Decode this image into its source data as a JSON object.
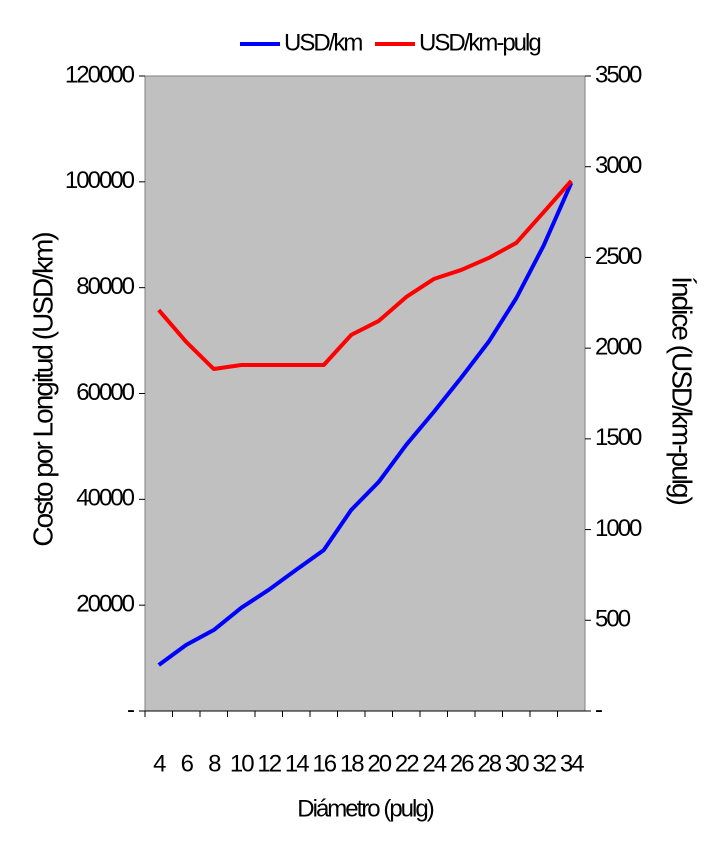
{
  "chart_data": {
    "type": "line",
    "y_label": "Costo por Longitud (USD/km)",
    "y2_label": "Índice (USD/km-pulg)",
    "x_label": "Diámetro (pulg)",
    "categories": [
      "4",
      "6",
      "8",
      "10",
      "12",
      "14",
      "16",
      "18",
      "20",
      "22",
      "24",
      "26",
      "28",
      "30",
      "32",
      "34"
    ],
    "series": [
      {
        "name": "USD/km",
        "color": "#0000ff",
        "values": [
          8700,
          12500,
          15300,
          19500,
          22900,
          26700,
          30400,
          38000,
          43300,
          50300,
          56500,
          63000,
          69800,
          78000,
          88000,
          99800
        ]
      },
      {
        "name": "USD/km-pulg",
        "color": "#ff0000",
        "axis": "y2",
        "values": [
          2210,
          2034,
          1885,
          1907,
          1907,
          1907,
          1907,
          2073,
          2150,
          2282,
          2381,
          2431,
          2497,
          2580,
          2750,
          2922
        ]
      }
    ],
    "ylim": [
      0,
      120000
    ],
    "yticks": [
      {
        "value": 0,
        "label": "-"
      },
      20000,
      40000,
      60000,
      80000,
      100000,
      120000
    ],
    "y2lim": [
      0,
      3500
    ],
    "y2ticks": [
      {
        "value": 0,
        "label": "-"
      },
      500,
      1000,
      1500,
      2000,
      2500,
      3000,
      3500
    ],
    "plot_color": "#c0c0c0"
  }
}
